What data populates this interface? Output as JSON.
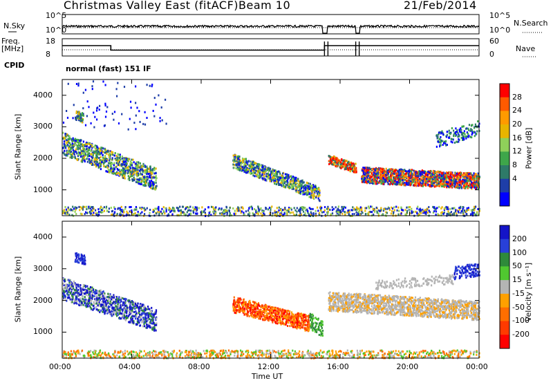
{
  "header": {
    "title": "Christmas Valley East (fitACF)",
    "beam": "Beam 10",
    "date": "21/Feb/2014"
  },
  "panels": {
    "nsky": {
      "left_label": "N.Sky",
      "right_label": "N.Search",
      "left_ticks": [
        "10^5",
        "10^0"
      ],
      "right_ticks": [
        "10^5",
        "10^0"
      ]
    },
    "freq": {
      "left_label_1": "Freq.",
      "left_label_2": "[MHz]",
      "right_label": "Nave",
      "left_ticks": [
        "18",
        "8"
      ],
      "right_ticks": [
        "60",
        "0"
      ]
    },
    "cpid": {
      "label": "CPID",
      "text": "normal (fast) 151 IF"
    }
  },
  "chart_data": [
    {
      "type": "line",
      "name": "noise-panel",
      "x_hours": [
        0,
        15,
        15.2,
        16.9,
        17.1,
        24
      ],
      "noise_sky": [
        1,
        1,
        0.05,
        1,
        0.05,
        1
      ],
      "xlim": [
        0,
        24
      ]
    },
    {
      "type": "line",
      "name": "frequency-panel",
      "xlim": [
        0,
        24
      ],
      "ylim": [
        8,
        18
      ],
      "freq_steps": [
        {
          "x": 0,
          "y": 14
        },
        {
          "x": 2.8,
          "y": 11.4
        },
        {
          "x": 15.1,
          "y": 14
        },
        {
          "x": 24,
          "y": 14
        }
      ]
    },
    {
      "type": "heatmap",
      "name": "power",
      "ylabel": "Slant Range [km]",
      "yticks": [
        1000,
        2000,
        3000,
        4000
      ],
      "ylim": [
        180,
        4500
      ],
      "xlim": [
        0,
        24
      ],
      "colorbar": {
        "label": "Power [dB]",
        "ticks": [
          "28",
          "24",
          "20",
          "16",
          "12",
          "8",
          "4"
        ],
        "colors": [
          "#ff0000",
          "#ff5a00",
          "#ff9a00",
          "#e8b400",
          "#8fd05a",
          "#3ea64a",
          "#2e7a68",
          "#1e3ea8",
          "#0000ff"
        ]
      }
    },
    {
      "type": "heatmap",
      "name": "velocity",
      "ylabel": "Slant Range [km]",
      "yticks": [
        1000,
        2000,
        3000,
        4000
      ],
      "ylim": [
        180,
        4500
      ],
      "xlim": [
        0,
        24
      ],
      "xticks": [
        "00:00",
        "04:00",
        "08:00",
        "12:00",
        "16:00",
        "20:00",
        "00:00"
      ],
      "xlabel": "Time UT",
      "colorbar": {
        "label": "Velocity [m s⁻¹]",
        "ticks": [
          "200",
          "100",
          "50",
          "15",
          "-15",
          "-50",
          "-100",
          "-200"
        ],
        "colors": [
          "#1414c8",
          "#2840d8",
          "#2e8a3a",
          "#50c830",
          "#b4b4b4",
          "#ffa000",
          "#ff6e00",
          "#ff3a00",
          "#ff0000"
        ]
      }
    }
  ]
}
